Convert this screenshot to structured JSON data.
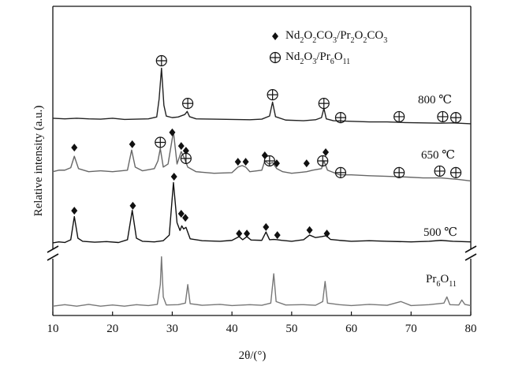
{
  "chart_data": {
    "type": "line",
    "x_label": "2θ/(°)",
    "y_label": "Relative intensity (a.u.)",
    "xlim": [
      10,
      80
    ],
    "xticks": [
      10,
      20,
      30,
      40,
      50,
      60,
      70,
      80
    ],
    "ylim": [
      0,
      100
    ],
    "series": [
      {
        "name": "800 ℃",
        "color": "#222222",
        "x": [
          10,
          12,
          14,
          16,
          18,
          20,
          22,
          24,
          26,
          27.4,
          27.8,
          28.2,
          28.6,
          29,
          30,
          31,
          32.1,
          32.5,
          32.9,
          34,
          37,
          40,
          43,
          45,
          46.3,
          46.8,
          47.3,
          49,
          52,
          54,
          55,
          55.4,
          55.8,
          57,
          60,
          63,
          66,
          69,
          72,
          75,
          77,
          80
        ],
        "values": [
          63.8,
          63.6,
          63.8,
          63.6,
          63.5,
          63.8,
          63.4,
          63.5,
          63.6,
          64.2,
          70,
          80,
          68,
          64.5,
          64,
          64.2,
          65,
          66,
          64.3,
          63.6,
          63.5,
          63.4,
          63.3,
          63.5,
          64.5,
          69,
          64.3,
          63.2,
          63,
          63.3,
          64,
          67,
          63.6,
          63,
          62.8,
          62.6,
          62.6,
          62.4,
          62.3,
          62.2,
          62.3,
          62
        ]
      },
      {
        "name": "650 ℃",
        "color": "#666666",
        "x": [
          10,
          11,
          12,
          13,
          13.6,
          14.3,
          16,
          18,
          20,
          22.5,
          23.2,
          23.8,
          25,
          27,
          27.6,
          28,
          28.5,
          29.3,
          30.2,
          30.8,
          31.5,
          32,
          32.6,
          34,
          37,
          40,
          41,
          41.7,
          42.3,
          43,
          45,
          45.5,
          46.2,
          46.8,
          47.5,
          48.5,
          50,
          52.5,
          53.5,
          55,
          55.4,
          56,
          58,
          60,
          63,
          66,
          69,
          72,
          75,
          78,
          80
        ],
        "values": [
          46.5,
          47,
          47,
          47.8,
          51.5,
          47.5,
          46.5,
          46.8,
          46.5,
          47,
          53.5,
          48,
          46.8,
          47.5,
          50,
          54,
          48,
          49,
          59.5,
          49,
          53,
          51,
          48,
          46.5,
          46,
          46.2,
          48,
          48.5,
          48,
          46.5,
          47,
          50,
          49,
          49.5,
          47.5,
          46.5,
          46,
          46.5,
          47,
          47.5,
          50,
          47,
          45.5,
          45.5,
          45.2,
          45,
          44.8,
          44.5,
          44.5,
          44,
          43.5
        ]
      },
      {
        "name": "500 ℃",
        "color": "#111111",
        "x": [
          10,
          11,
          12,
          13,
          13.6,
          14.2,
          15,
          17,
          19,
          21,
          22.5,
          23.3,
          24,
          25,
          27,
          28.5,
          29.5,
          30.2,
          30.8,
          31.3,
          31.6,
          31.9,
          32.3,
          33,
          35,
          38,
          40,
          41.2,
          41.8,
          42.5,
          43.2,
          45,
          45.7,
          46.3,
          47,
          47.6,
          48.3,
          50,
          52,
          53,
          54,
          55,
          55.8,
          56.5,
          58,
          60,
          63,
          66,
          70,
          73,
          75,
          77,
          80
        ],
        "values": [
          23.5,
          23.8,
          23.6,
          24.5,
          32,
          25,
          24,
          23.7,
          23.9,
          23.6,
          24.5,
          34,
          25,
          24,
          23.8,
          24.2,
          26,
          43,
          30,
          27.5,
          29,
          28,
          28.5,
          24.8,
          24.2,
          24,
          24.3,
          25.5,
          24.5,
          25.5,
          24.4,
          24.3,
          27,
          24.5,
          24.6,
          24.5,
          24.3,
          24,
          24.5,
          26,
          25.2,
          25.5,
          25.8,
          24.6,
          24.3,
          24,
          24.2,
          24,
          23.8,
          24,
          24.3,
          24,
          23.8
        ]
      },
      {
        "name": "Pr6O11",
        "color": "#777777",
        "x": [
          10,
          12,
          14,
          16,
          18,
          20,
          22,
          24,
          26,
          27.5,
          28,
          28.2,
          28.5,
          29,
          31,
          32.2,
          32.6,
          33,
          35,
          38,
          40,
          43,
          45,
          46.5,
          47,
          47.4,
          49,
          52,
          54,
          55.2,
          55.6,
          56,
          58,
          60,
          63,
          66,
          68.3,
          70,
          73,
          75.5,
          76,
          76.5,
          78,
          78.5,
          79,
          80
        ],
        "values": [
          3,
          3.5,
          3,
          3.6,
          3,
          3.4,
          3,
          3.5,
          3.2,
          3.6,
          10,
          19,
          6,
          3.4,
          3.5,
          4,
          10,
          3.8,
          3.3,
          3.6,
          3.2,
          3.5,
          3.3,
          4,
          13.5,
          4.5,
          3.4,
          3.5,
          3.3,
          4.5,
          11,
          4,
          3.5,
          3.2,
          3.6,
          3.3,
          4.5,
          3.2,
          3.5,
          4,
          6,
          3.5,
          3.4,
          5,
          3.6,
          3.2
        ]
      }
    ],
    "phase_markers": [
      {
        "label": "Nd2O2CO3/Pr2O2CO3",
        "marker": "diamond",
        "color": "#111111",
        "x": [
          13.6,
          23.3,
          30,
          31.5,
          32.3,
          41,
          42.3,
          45.5,
          47.5,
          52.5,
          55.7,
          13.6,
          23.4,
          30.3,
          31.5,
          32.2,
          41.2,
          42.5,
          45.7,
          47.6,
          53,
          55.9
        ],
        "y": [
          54.3,
          55.4,
          59.2,
          54.8,
          53.3,
          49.7,
          49.7,
          51.8,
          49.2,
          49.2,
          52.8,
          33.9,
          35.5,
          44.9,
          32.9,
          31.6,
          26.5,
          26.5,
          28.6,
          26,
          27.6,
          26.5
        ]
      },
      {
        "label": "Nd2O3/Pr6O11",
        "marker": "circle-plus",
        "color": "#111111",
        "x": [
          28.2,
          32.6,
          46.8,
          55.4,
          58.2,
          68,
          75.3,
          77.5,
          28,
          32.3,
          46.3,
          55.2,
          58.2,
          68,
          74.8,
          77.5
        ],
        "y": [
          82.4,
          68.6,
          71.4,
          68.6,
          64,
          64.3,
          64.3,
          64,
          56,
          50.8,
          50,
          50,
          46.2,
          46.2,
          46.7,
          46.2
        ]
      }
    ]
  }
}
